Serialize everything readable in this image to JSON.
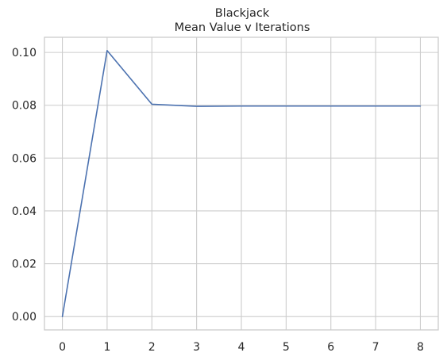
{
  "chart_data": {
    "type": "line",
    "title": "Blackjack",
    "subtitle": "Mean Value v Iterations",
    "xlabel": "",
    "ylabel": "",
    "x": [
      0,
      1,
      2,
      3,
      4,
      5,
      6,
      7,
      8
    ],
    "series": [
      {
        "values": [
          0.0,
          0.1007,
          0.0804,
          0.0796,
          0.0797,
          0.0797,
          0.0797,
          0.0797,
          0.0797
        ],
        "color": "#4c72b0"
      }
    ],
    "xticks": [
      0,
      1,
      2,
      3,
      4,
      5,
      6,
      7,
      8
    ],
    "xtick_labels": [
      "0",
      "1",
      "2",
      "3",
      "4",
      "5",
      "6",
      "7",
      "8"
    ],
    "yticks": [
      0.0,
      0.02,
      0.04,
      0.06,
      0.08,
      0.1
    ],
    "ytick_labels": [
      "0.00",
      "0.02",
      "0.04",
      "0.06",
      "0.08",
      "0.10"
    ],
    "xlim": [
      -0.4,
      8.4
    ],
    "ylim": [
      -0.00504,
      0.10574
    ],
    "grid": true,
    "legend": "none",
    "style": {
      "grid_color": "#cccccc",
      "spine_color": "#cccccc",
      "background": "#ffffff"
    }
  }
}
